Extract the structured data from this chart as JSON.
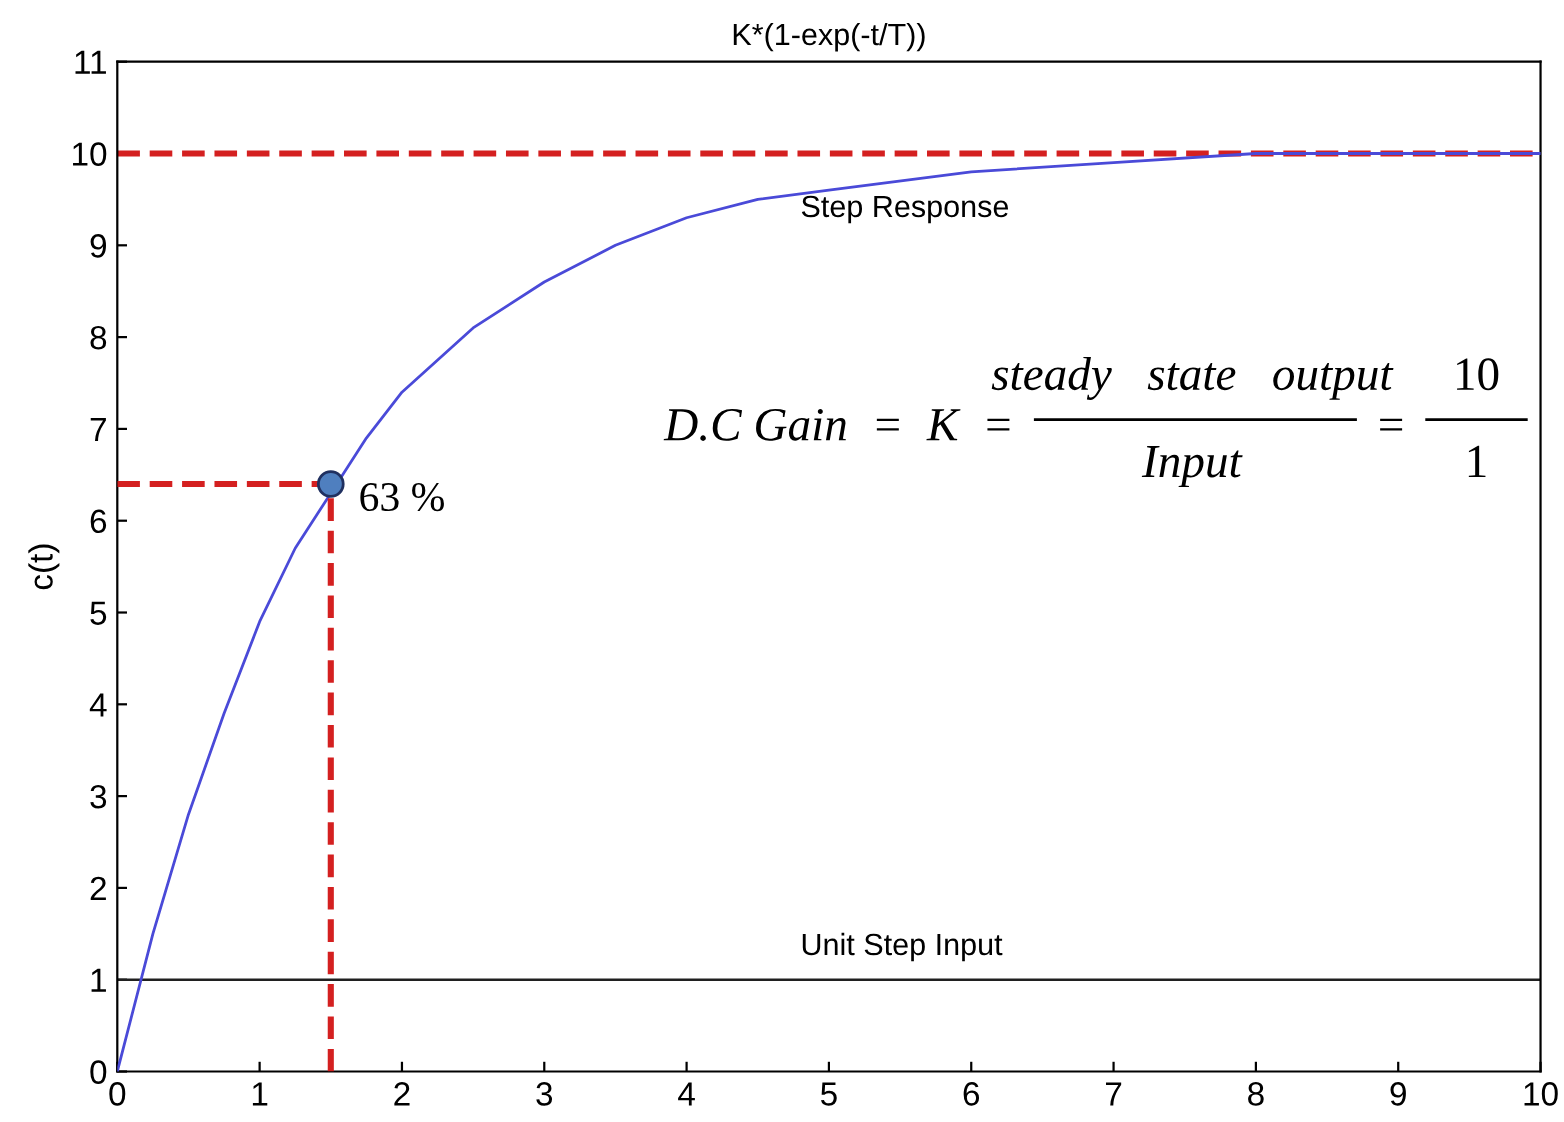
{
  "chart_data": {
    "type": "line",
    "title": "K*(1-exp(-t/T))",
    "ylabel": "c(t)",
    "xlim": [
      0,
      10
    ],
    "ylim": [
      0,
      11
    ],
    "xticks": [
      0,
      1,
      2,
      3,
      4,
      5,
      6,
      7,
      8,
      9,
      10
    ],
    "yticks": [
      0,
      1,
      2,
      3,
      4,
      5,
      6,
      7,
      8,
      9,
      10,
      11
    ],
    "series": [
      {
        "color": "#4a4ad8",
        "x": [
          0,
          0.25,
          0.5,
          0.75,
          1,
          1.25,
          1.5,
          1.75,
          2,
          2.5,
          3,
          3.5,
          4,
          4.5,
          5,
          6,
          7,
          8,
          9,
          10
        ],
        "values": [
          0,
          1.5,
          2.8,
          3.9,
          4.9,
          5.7,
          6.3,
          6.9,
          7.4,
          8.1,
          8.6,
          9.0,
          9.3,
          9.5,
          9.6,
          9.8,
          9.9,
          10,
          10,
          10
        ]
      },
      {
        "color": "#d42020",
        "line_style": "dashed",
        "x": [
          0,
          1.5
        ],
        "values": [
          6.4,
          6.4
        ]
      },
      {
        "color": "#d42020",
        "line_style": "dashed",
        "x": [
          1.5,
          1.5
        ],
        "values": [
          0,
          6.4
        ]
      },
      {
        "type": "scatter",
        "color": "#4f7fbf",
        "marker": "circle",
        "x": [
          1.5
        ],
        "values": [
          6.4
        ]
      }
    ],
    "ref_lines": [
      {
        "axis": "y",
        "value": 10,
        "label": "Step Response",
        "color": "#d42020",
        "line_style": "dashed"
      },
      {
        "axis": "y",
        "value": 1,
        "label": "Unit Step Input",
        "color": "#202020",
        "line_style": "solid"
      }
    ],
    "annotations": [
      {
        "text": "63 %",
        "x": 1.5,
        "y": 6.4
      },
      "D.C Gain  =  K  =",
      "steady   state   output",
      "Input",
      "=",
      "10",
      "1"
    ],
    "grid": false,
    "legend": false
  }
}
